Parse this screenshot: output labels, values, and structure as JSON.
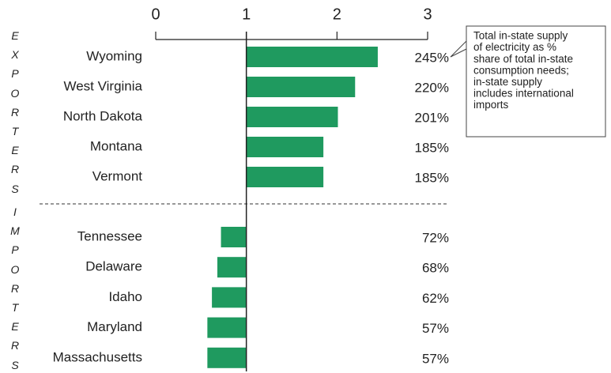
{
  "chart_data": {
    "type": "bar",
    "orientation": "horizontal",
    "color": "#1f9a5f",
    "xlim": [
      0,
      3
    ],
    "xticks": [
      0,
      1,
      2,
      3
    ],
    "baseline": 1,
    "annotation": [
      "Total in-state supply",
      "of electricity as %",
      "share of total in-state",
      "consumption needs;",
      "in-state supply",
      "includes international",
      "imports"
    ],
    "groups": [
      {
        "name": "EXPORTERS",
        "categories": [
          "Wyoming",
          "West Virginia",
          "North Dakota",
          "Montana",
          "Vermont"
        ],
        "values": [
          2.45,
          2.2,
          2.01,
          1.85,
          1.85
        ],
        "value_labels": [
          "245%",
          "220%",
          "201%",
          "185%",
          "185%"
        ]
      },
      {
        "name": "IMPORTERS",
        "categories": [
          "Tennessee",
          "Delaware",
          "Idaho",
          "Maryland",
          "Massachusetts"
        ],
        "values": [
          0.72,
          0.68,
          0.62,
          0.57,
          0.57
        ],
        "value_labels": [
          "72%",
          "68%",
          "62%",
          "57%",
          "57%"
        ]
      }
    ]
  }
}
